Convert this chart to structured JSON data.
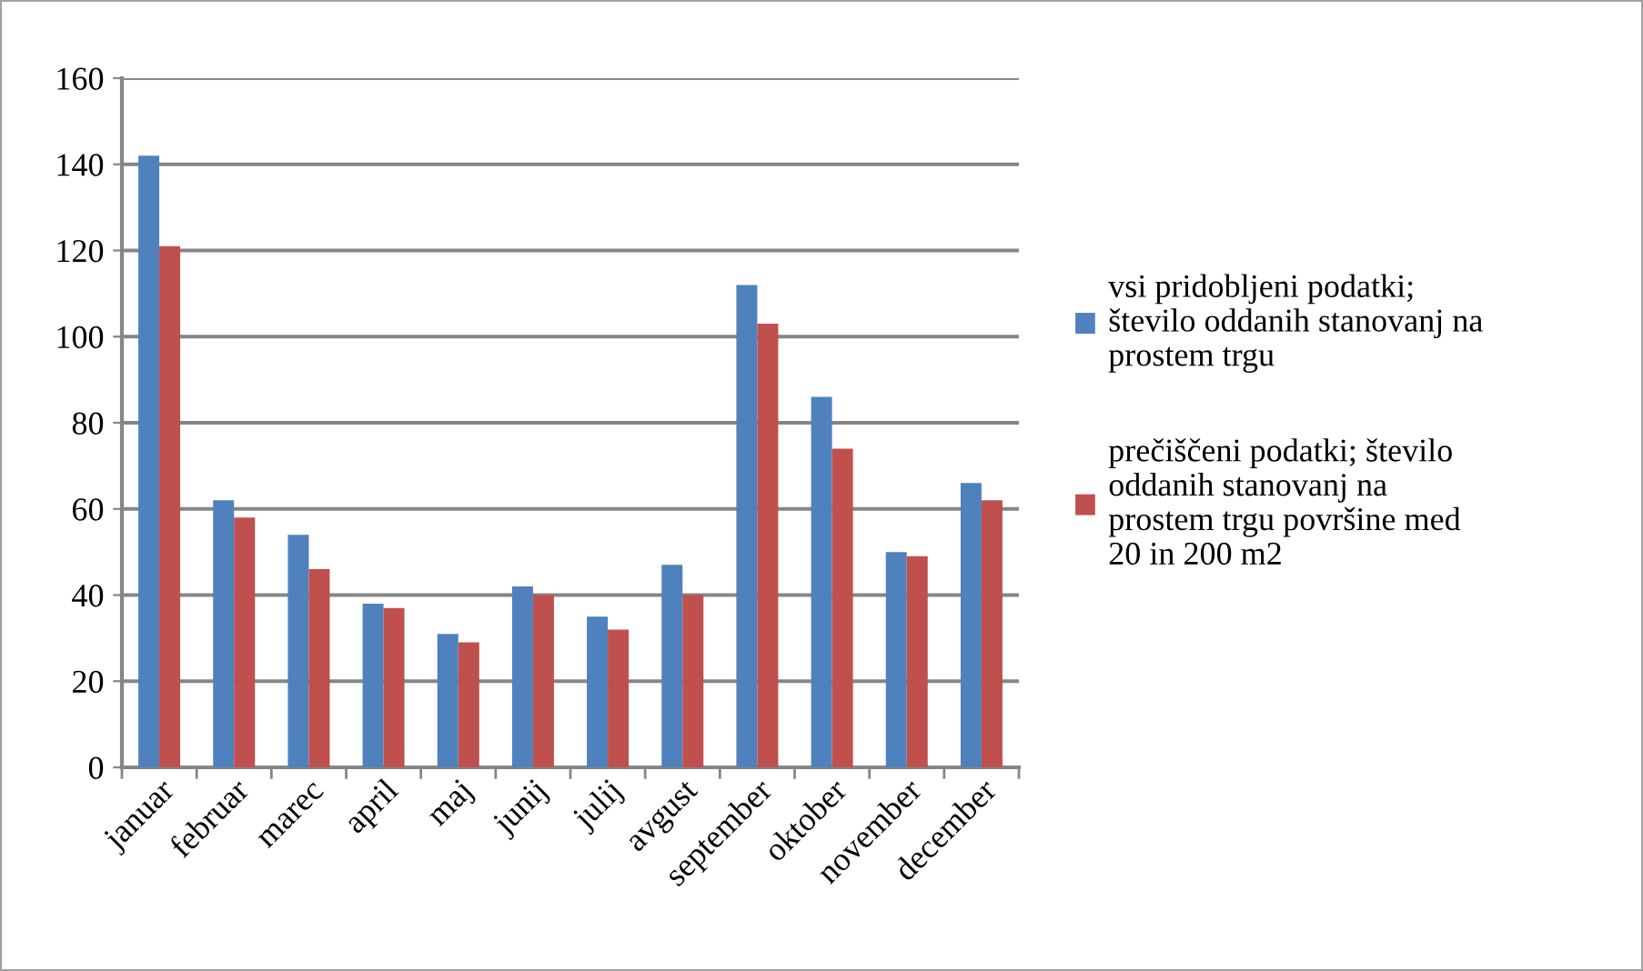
{
  "chart_data": {
    "type": "bar",
    "categories": [
      "januar",
      "februar",
      "marec",
      "april",
      "maj",
      "junij",
      "julij",
      "avgust",
      "september",
      "oktober",
      "november",
      "december"
    ],
    "series": [
      {
        "name": "vsi pridobljeni podatki;\nštevilo oddanih stanovanj na\nprostem trgu",
        "color": "#4f81bd",
        "values": [
          142,
          62,
          54,
          38,
          31,
          42,
          35,
          47,
          112,
          86,
          50,
          66
        ]
      },
      {
        "name": "prečiščeni podatki; število\noddanih stanovanj na\nprostem trgu površine med\n20 in 200 m2",
        "color": "#c0504d",
        "values": [
          121,
          58,
          46,
          37,
          29,
          40,
          32,
          40,
          103,
          74,
          49,
          62
        ]
      }
    ],
    "ylim": [
      0,
      160
    ],
    "yticks": [
      0,
      20,
      40,
      60,
      80,
      100,
      120,
      140,
      160
    ],
    "grid": "y",
    "legend": "right"
  }
}
